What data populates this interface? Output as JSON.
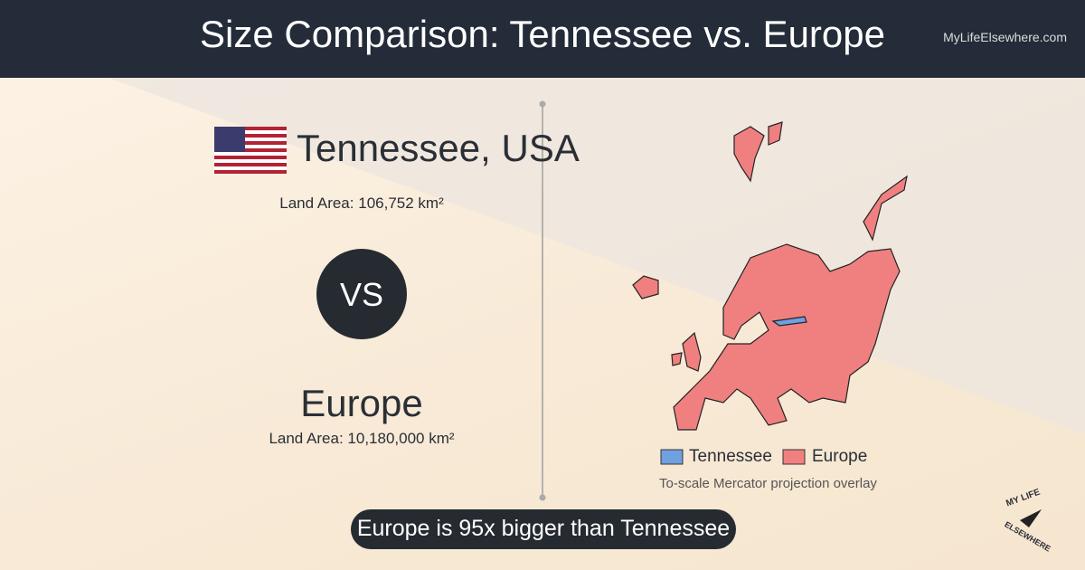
{
  "header": {
    "title": "Size Comparison: Tennessee vs. Europe",
    "site": "MyLifeElsewhere.com"
  },
  "left": {
    "place1": {
      "name": "Tennessee, USA",
      "area_label": "Land Area:",
      "area": "106,752 km²"
    },
    "vs": "VS",
    "place2": {
      "name": "Europe",
      "area_label": "Land Area:",
      "area": "10,180,000 km²"
    }
  },
  "map": {
    "legend": [
      "Tennessee",
      "Europe"
    ],
    "caption": "To-scale Mercator projection overlay"
  },
  "banner": "Europe is 95x bigger than Tennessee",
  "logo": {
    "top": "MY LIFE",
    "bottom": "ELSEWHERE"
  }
}
